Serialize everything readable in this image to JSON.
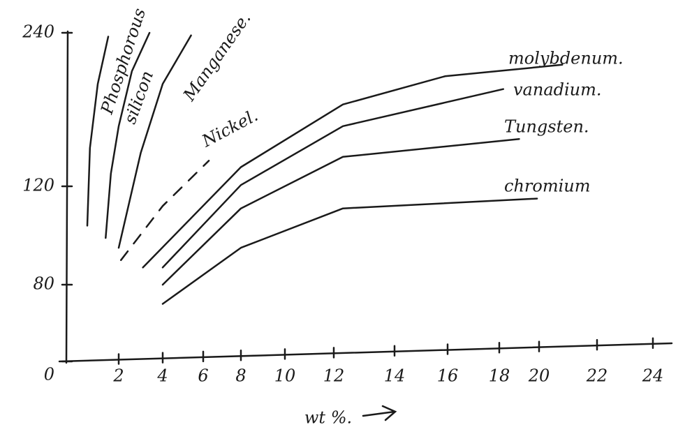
{
  "chart_data": {
    "type": "line",
    "x_label": "wt %.",
    "xlim": [
      0,
      24
    ],
    "xticks": [
      2,
      4,
      6,
      8,
      10,
      12,
      14,
      16,
      18,
      20,
      22,
      24
    ],
    "ylim": [
      0,
      240
    ],
    "yticks": [
      0,
      80,
      120,
      240
    ],
    "color": "#1a1a1a",
    "series": [
      {
        "name": "Phosphorous",
        "x": [
          0.8,
          0.9,
          1.2,
          1.6
        ],
        "values": [
          104,
          150,
          200,
          237
        ]
      },
      {
        "name": "silicon",
        "x": [
          1.5,
          1.7,
          2.0,
          2.6,
          3.4
        ],
        "values": [
          99,
          130,
          167,
          210,
          240
        ]
      },
      {
        "name": "Manganese.",
        "x": [
          2.0,
          3.0,
          4.0,
          5.4
        ],
        "values": [
          95,
          146,
          200,
          238
        ]
      },
      {
        "name": "Nickel.",
        "x": [
          2.1,
          4.0,
          6.3
        ],
        "values": [
          90,
          112,
          140
        ],
        "dashed": true
      },
      {
        "name": "molybdenum.",
        "x": [
          3.1,
          8,
          12.3,
          15.9,
          20.8
        ],
        "values": [
          87,
          135,
          184,
          206,
          215
        ]
      },
      {
        "name": "vanadium.",
        "x": [
          4,
          8,
          12.3,
          18.2
        ],
        "values": [
          87,
          121,
          167,
          196
        ]
      },
      {
        "name": "Tungsten.",
        "x": [
          4,
          8,
          12.3,
          19
        ],
        "values": [
          80,
          111,
          143,
          157
        ]
      },
      {
        "name": "chromium",
        "x": [
          4,
          8,
          12.3,
          19.9
        ],
        "values": [
          60,
          95,
          111,
          115
        ]
      }
    ]
  }
}
